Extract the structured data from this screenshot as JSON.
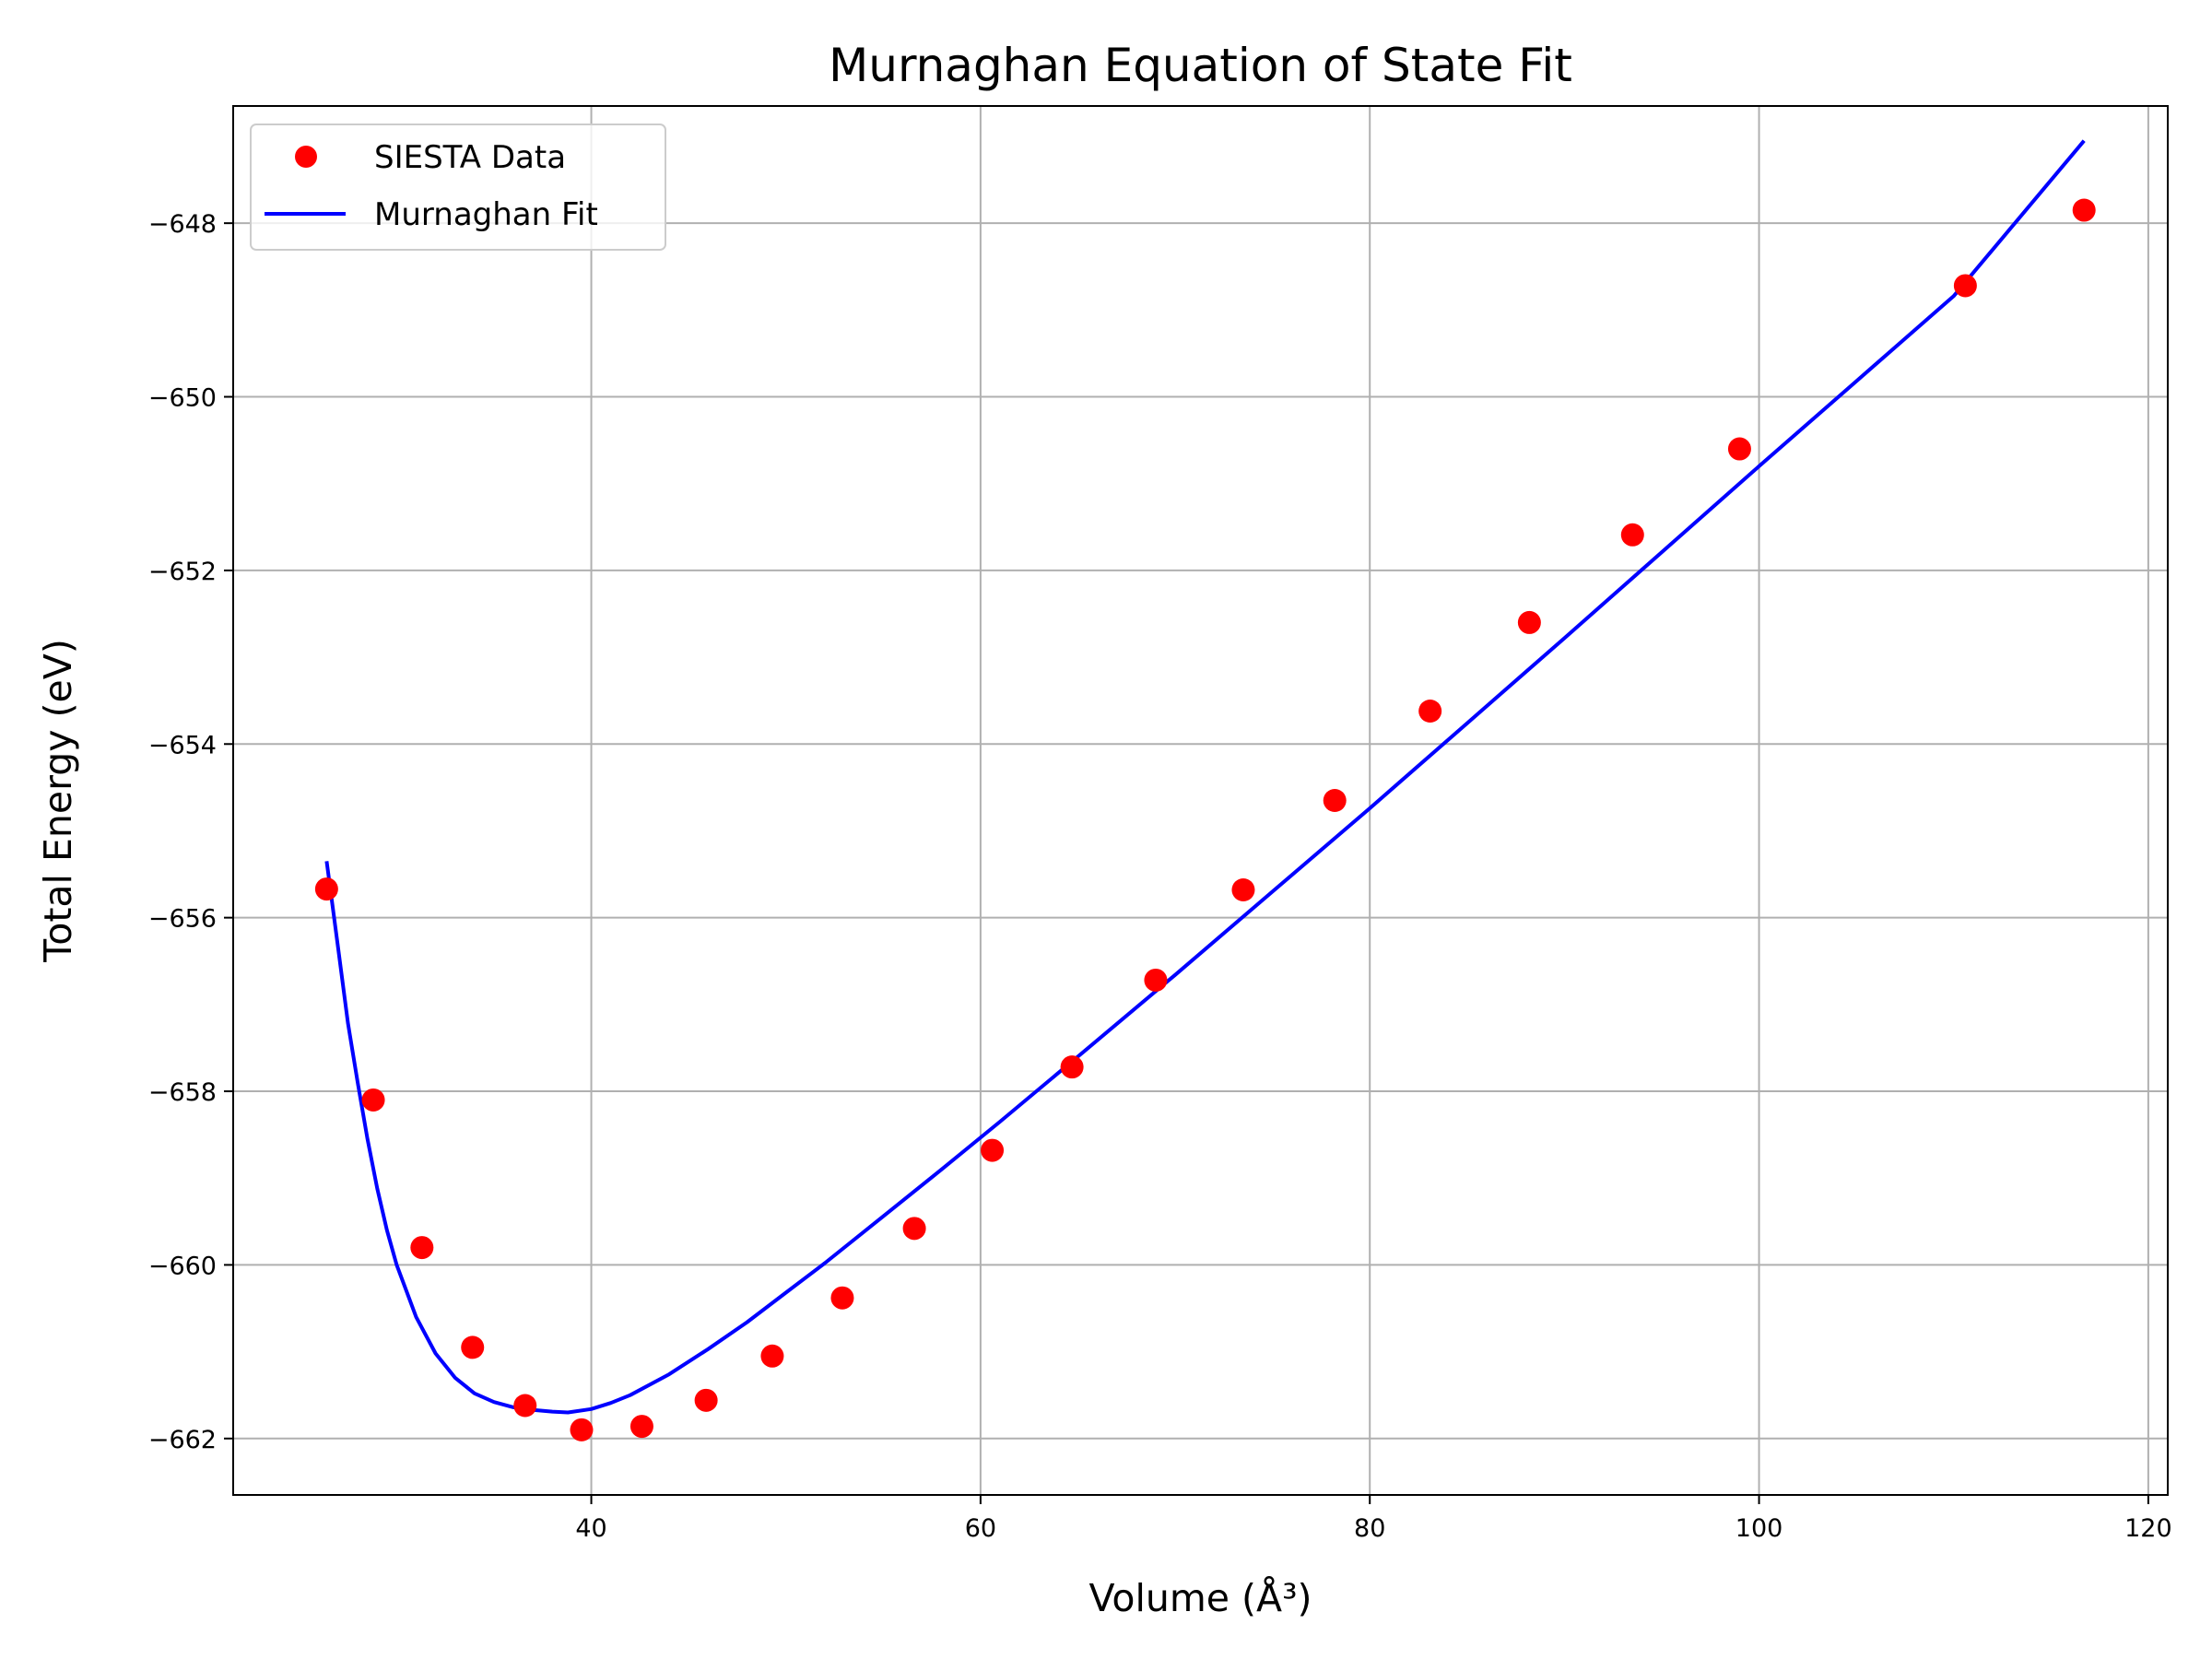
{
  "chart_data": {
    "type": "scatter",
    "title": "Murnaghan Equation of State Fit",
    "xlabel": "Volume (Å³)",
    "ylabel": "Total Energy (eV)",
    "xlim": [
      21.6,
      121.0
    ],
    "ylim": [
      -662.65,
      -646.65
    ],
    "xticks": [
      40,
      60,
      80,
      100,
      120
    ],
    "yticks": [
      -662,
      -660,
      -658,
      -656,
      -654,
      -652,
      -650,
      -648
    ],
    "xtick_labels": [
      "40",
      "60",
      "80",
      "100",
      "120"
    ],
    "ytick_labels": [
      "−662",
      "−660",
      "−658",
      "−656",
      "−654",
      "−652",
      "−650",
      "−648"
    ],
    "grid": true,
    "legend_position": "top-left",
    "series": [
      {
        "name": "SIESTA Data",
        "kind": "scatter",
        "color": "#ff0000",
        "x": [
          26.4,
          28.8,
          31.3,
          33.9,
          36.6,
          39.5,
          42.6,
          45.9,
          49.3,
          52.9,
          56.6,
          60.6,
          64.7,
          69.0,
          73.5,
          78.2,
          83.1,
          88.2,
          93.5,
          99.0,
          110.6,
          116.7
        ],
        "y": [
          -655.67,
          -658.1,
          -659.8,
          -660.95,
          -661.62,
          -661.9,
          -661.86,
          -661.56,
          -661.05,
          -660.38,
          -659.58,
          -658.68,
          -657.72,
          -656.72,
          -655.68,
          -654.65,
          -653.62,
          -652.6,
          -651.59,
          -650.6,
          -648.72,
          -647.85
        ]
      },
      {
        "name": "Murnaghan Fit",
        "kind": "line",
        "color": "#0000ff",
        "x": [
          26.4,
          27.0,
          27.5,
          28.0,
          28.5,
          29.0,
          29.5,
          30.0,
          31.0,
          32.0,
          33.0,
          34.0,
          35.0,
          36.0,
          37.0,
          38.0,
          38.8,
          40.0,
          41.0,
          42.0,
          44.0,
          46.0,
          48.0,
          50.0,
          52.0,
          55.0,
          58.0,
          61.0,
          65.0,
          70.0,
          75.0,
          80.0,
          85.0,
          90.0,
          95.0,
          100.0,
          105.0,
          110.0,
          116.7
        ],
        "y": [
          -655.35,
          -656.36,
          -657.22,
          -657.9,
          -658.55,
          -659.12,
          -659.6,
          -660.0,
          -660.6,
          -661.02,
          -661.3,
          -661.48,
          -661.58,
          -661.64,
          -661.67,
          -661.69,
          -661.7,
          -661.66,
          -661.59,
          -661.5,
          -661.26,
          -660.97,
          -660.66,
          -660.32,
          -659.98,
          -659.44,
          -658.9,
          -658.35,
          -657.6,
          -656.66,
          -655.7,
          -654.74,
          -653.76,
          -652.78,
          -651.79,
          -650.8,
          -649.82,
          -648.84,
          -647.05
        ]
      }
    ]
  }
}
